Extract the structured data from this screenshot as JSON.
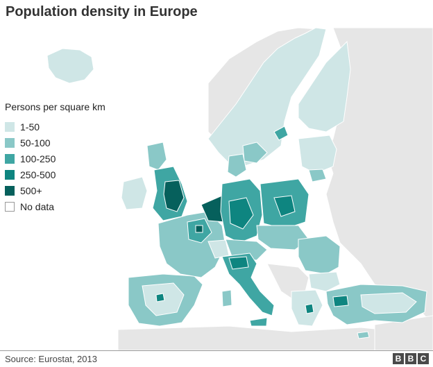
{
  "title": "Population density in Europe",
  "legend": {
    "title": "Persons per square km",
    "items": [
      {
        "label": "1-50",
        "color": "#cfe6e6"
      },
      {
        "label": "50-100",
        "color": "#8ac8c7"
      },
      {
        "label": "100-250",
        "color": "#3fa6a3"
      },
      {
        "label": "250-500",
        "color": "#0e8580"
      },
      {
        "label": "500+",
        "color": "#06605c"
      },
      {
        "label": "No data",
        "color": "#ffffff"
      }
    ]
  },
  "colors": {
    "sea": "#ffffff",
    "non_eu_land": "#e6e6e6",
    "border": "#ffffff"
  },
  "source": "Source: Eurostat, 2013",
  "logo": [
    "B",
    "B",
    "C"
  ]
}
